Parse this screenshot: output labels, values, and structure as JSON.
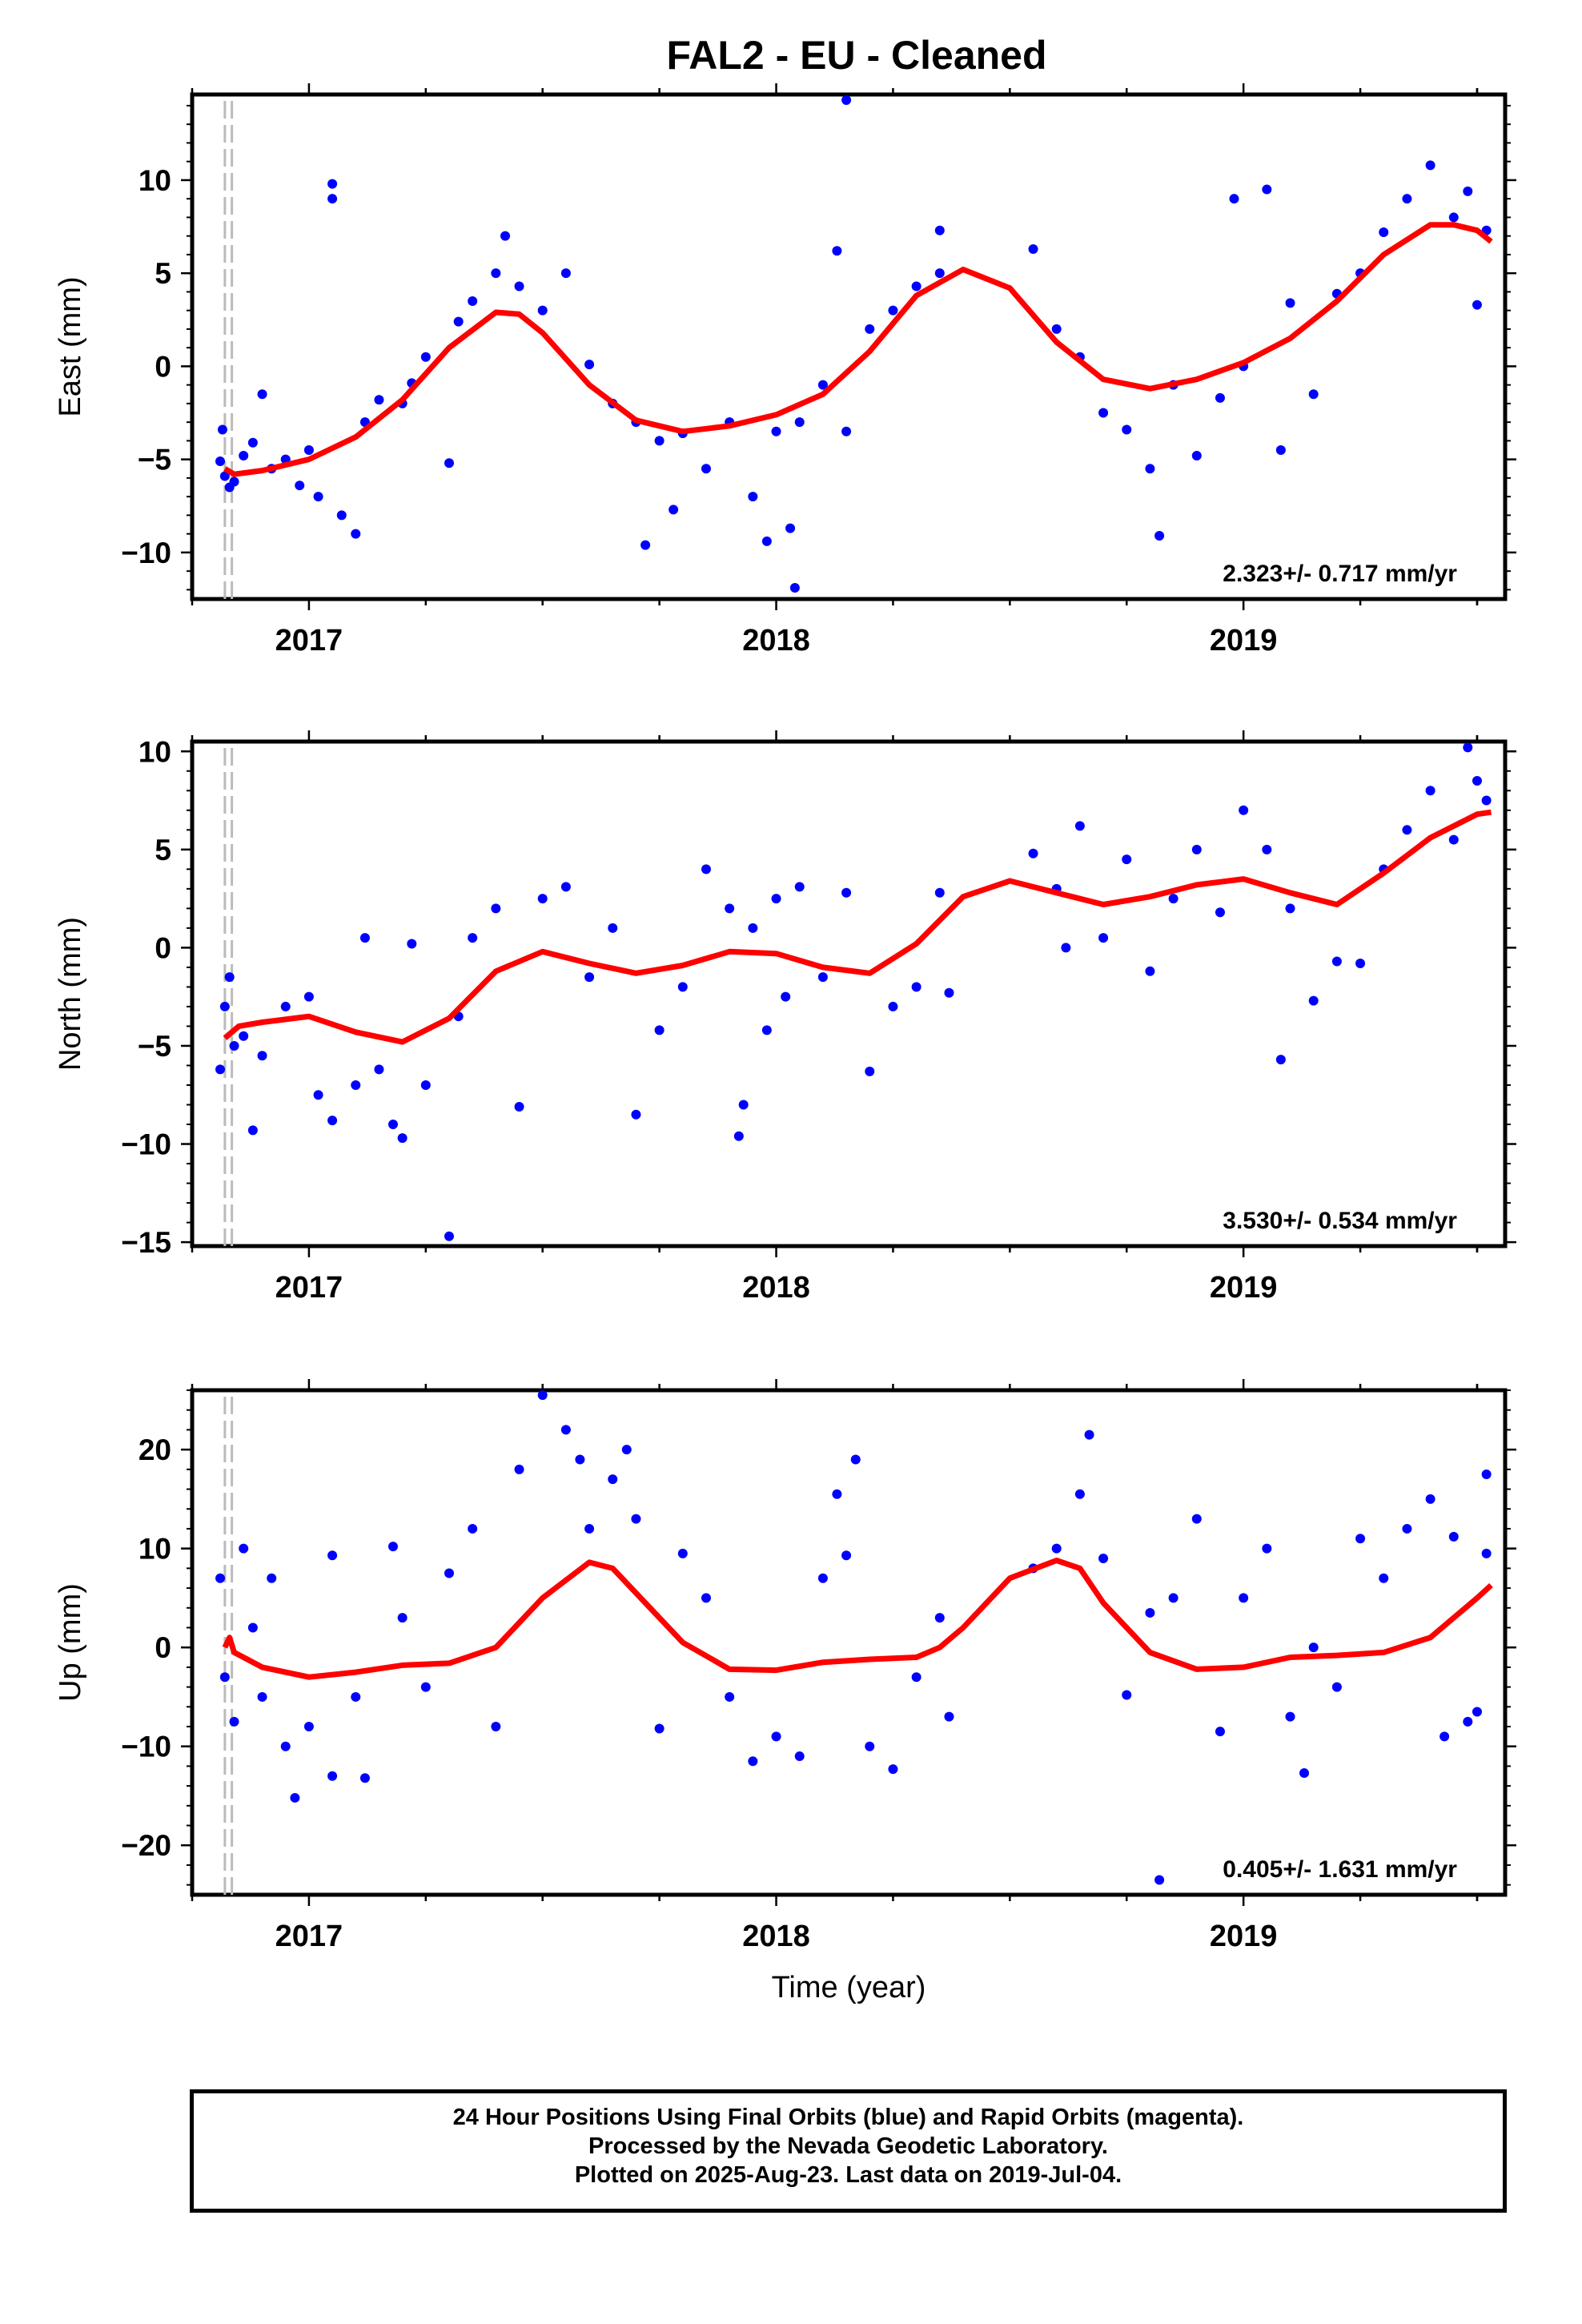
{
  "title": "FAL2  - EU - Cleaned",
  "footer": {
    "line1": "24 Hour Positions Using Final Orbits (blue) and Rapid Orbits (magenta).",
    "line2": "Processed by the Nevada Geodetic Laboratory.",
    "line3": "Plotted on 2025-Aug-23. Last data on 2019-Jul-04."
  },
  "colors": {
    "points": "#0000ff",
    "fit": "#ff0000",
    "marker": "#bbbbbb",
    "frame": "#000000"
  },
  "chart_data": [
    {
      "type": "scatter",
      "name": "East",
      "ylabel": "East (mm)",
      "xlabel": "",
      "xlim": [
        2016.75,
        2019.56
      ],
      "ylim": [
        -12.5,
        14.6
      ],
      "yticks": [
        -10,
        -5,
        0,
        5,
        10
      ],
      "xticks": [
        2017,
        2018,
        2019
      ],
      "rate_label": "2.323+/- 0.717 mm/yr",
      "marker_x": [
        2016.82,
        2016.835
      ],
      "grid": false,
      "fit_x": [
        2016.82,
        2016.84,
        2016.9,
        2017.0,
        2017.1,
        2017.2,
        2017.3,
        2017.4,
        2017.45,
        2017.5,
        2017.6,
        2017.7,
        2017.8,
        2017.9,
        2018.0,
        2018.1,
        2018.2,
        2018.3,
        2018.4,
        2018.5,
        2018.6,
        2018.7,
        2018.8,
        2018.9,
        2019.0,
        2019.1,
        2019.2,
        2019.3,
        2019.4,
        2019.45,
        2019.5,
        2019.53
      ],
      "fit_y": [
        -5.5,
        -5.8,
        -5.6,
        -5.0,
        -3.8,
        -1.8,
        1.0,
        2.9,
        2.8,
        1.8,
        -1.0,
        -2.9,
        -3.5,
        -3.2,
        -2.6,
        -1.5,
        0.8,
        3.8,
        5.2,
        4.2,
        1.3,
        -0.7,
        -1.2,
        -0.7,
        0.2,
        1.5,
        3.5,
        6.0,
        7.6,
        7.6,
        7.3,
        6.7
      ],
      "points": [
        [
          2016.81,
          -5.1
        ],
        [
          2016.815,
          -3.4
        ],
        [
          2016.82,
          -5.9
        ],
        [
          2016.83,
          -6.5
        ],
        [
          2016.84,
          -6.2
        ],
        [
          2016.86,
          -4.8
        ],
        [
          2016.88,
          -4.1
        ],
        [
          2016.9,
          -1.5
        ],
        [
          2016.92,
          -5.5
        ],
        [
          2016.95,
          -5.0
        ],
        [
          2016.98,
          -6.4
        ],
        [
          2017.0,
          -4.5
        ],
        [
          2017.02,
          -7.0
        ],
        [
          2017.05,
          9.8
        ],
        [
          2017.05,
          9.0
        ],
        [
          2017.07,
          -8.0
        ],
        [
          2017.1,
          -9.0
        ],
        [
          2017.12,
          -3.0
        ],
        [
          2017.15,
          -1.8
        ],
        [
          2017.2,
          -2.0
        ],
        [
          2017.22,
          -0.9
        ],
        [
          2017.25,
          0.5
        ],
        [
          2017.3,
          -5.2
        ],
        [
          2017.32,
          2.4
        ],
        [
          2017.35,
          3.5
        ],
        [
          2017.4,
          5.0
        ],
        [
          2017.42,
          7.0
        ],
        [
          2017.45,
          4.3
        ],
        [
          2017.5,
          3.0
        ],
        [
          2017.55,
          5.0
        ],
        [
          2017.6,
          0.1
        ],
        [
          2017.65,
          -2.0
        ],
        [
          2017.7,
          -3.0
        ],
        [
          2017.72,
          -9.6
        ],
        [
          2017.75,
          -4.0
        ],
        [
          2017.78,
          -7.7
        ],
        [
          2017.8,
          -3.6
        ],
        [
          2017.85,
          -5.5
        ],
        [
          2017.9,
          -3.0
        ],
        [
          2017.95,
          -7.0
        ],
        [
          2017.98,
          -9.4
        ],
        [
          2018.0,
          -3.5
        ],
        [
          2018.03,
          -8.7
        ],
        [
          2018.05,
          -3.0
        ],
        [
          2018.1,
          -1.0
        ],
        [
          2018.13,
          6.2
        ],
        [
          2018.15,
          -3.5
        ],
        [
          2018.2,
          2.0
        ],
        [
          2018.25,
          3.0
        ],
        [
          2018.3,
          4.3
        ],
        [
          2018.35,
          7.3
        ],
        [
          2018.35,
          5.0
        ],
        [
          2018.55,
          6.3
        ],
        [
          2018.6,
          2.0
        ],
        [
          2018.65,
          0.5
        ],
        [
          2018.7,
          -2.5
        ],
        [
          2018.75,
          -3.4
        ],
        [
          2018.8,
          -5.5
        ],
        [
          2018.82,
          -9.1
        ],
        [
          2018.85,
          -1.0
        ],
        [
          2018.9,
          -4.8
        ],
        [
          2018.95,
          -1.7
        ],
        [
          2018.98,
          9.0
        ],
        [
          2019.0,
          0.0
        ],
        [
          2019.05,
          9.5
        ],
        [
          2019.08,
          -4.5
        ],
        [
          2019.1,
          3.4
        ],
        [
          2019.15,
          -1.5
        ],
        [
          2019.2,
          3.9
        ],
        [
          2019.25,
          5.0
        ],
        [
          2019.3,
          7.2
        ],
        [
          2019.35,
          9.0
        ],
        [
          2019.4,
          10.8
        ],
        [
          2019.45,
          8.0
        ],
        [
          2019.48,
          9.4
        ],
        [
          2019.5,
          3.3
        ],
        [
          2019.52,
          7.3
        ],
        [
          2018.15,
          14.3
        ],
        [
          2018.04,
          -11.9
        ]
      ]
    },
    {
      "type": "scatter",
      "name": "North",
      "ylabel": "North (mm)",
      "xlabel": "",
      "xlim": [
        2016.75,
        2019.56
      ],
      "ylim": [
        -15.2,
        10.5
      ],
      "yticks": [
        -15,
        -10,
        -5,
        0,
        5,
        10
      ],
      "xticks": [
        2017,
        2018,
        2019
      ],
      "rate_label": "3.530+/- 0.534 mm/yr",
      "marker_x": [
        2016.82,
        2016.835
      ],
      "grid": false,
      "fit_x": [
        2016.82,
        2016.85,
        2016.9,
        2017.0,
        2017.1,
        2017.2,
        2017.3,
        2017.4,
        2017.5,
        2017.6,
        2017.7,
        2017.8,
        2017.9,
        2018.0,
        2018.1,
        2018.2,
        2018.3,
        2018.4,
        2018.5,
        2018.6,
        2018.7,
        2018.8,
        2018.9,
        2019.0,
        2019.1,
        2019.2,
        2019.3,
        2019.4,
        2019.5,
        2019.53
      ],
      "fit_y": [
        -4.6,
        -4.0,
        -3.8,
        -3.5,
        -4.3,
        -4.8,
        -3.6,
        -1.2,
        -0.2,
        -0.8,
        -1.3,
        -0.9,
        -0.2,
        -0.3,
        -1.0,
        -1.3,
        0.2,
        2.6,
        3.4,
        2.8,
        2.2,
        2.6,
        3.2,
        3.5,
        2.8,
        2.2,
        3.8,
        5.6,
        6.8,
        6.9
      ],
      "points": [
        [
          2016.81,
          -6.2
        ],
        [
          2016.82,
          -3.0
        ],
        [
          2016.83,
          -1.5
        ],
        [
          2016.84,
          -5.0
        ],
        [
          2016.86,
          -4.5
        ],
        [
          2016.88,
          -9.3
        ],
        [
          2016.9,
          -5.5
        ],
        [
          2016.95,
          -3.0
        ],
        [
          2017.0,
          -2.5
        ],
        [
          2017.02,
          -7.5
        ],
        [
          2017.05,
          -8.8
        ],
        [
          2017.1,
          -7.0
        ],
        [
          2017.12,
          0.5
        ],
        [
          2017.15,
          -6.2
        ],
        [
          2017.18,
          -9.0
        ],
        [
          2017.2,
          -9.7
        ],
        [
          2017.22,
          0.2
        ],
        [
          2017.25,
          -7.0
        ],
        [
          2017.3,
          -14.7
        ],
        [
          2017.32,
          -3.5
        ],
        [
          2017.35,
          0.5
        ],
        [
          2017.4,
          2.0
        ],
        [
          2017.45,
          -8.1
        ],
        [
          2017.5,
          2.5
        ],
        [
          2017.55,
          3.1
        ],
        [
          2017.6,
          -1.5
        ],
        [
          2017.65,
          1.0
        ],
        [
          2017.7,
          -8.5
        ],
        [
          2017.75,
          -4.2
        ],
        [
          2017.8,
          -2.0
        ],
        [
          2017.85,
          4.0
        ],
        [
          2017.9,
          2.0
        ],
        [
          2017.92,
          -9.6
        ],
        [
          2017.93,
          -8.0
        ],
        [
          2017.95,
          1.0
        ],
        [
          2017.98,
          -4.2
        ],
        [
          2018.0,
          2.5
        ],
        [
          2018.02,
          -2.5
        ],
        [
          2018.05,
          3.1
        ],
        [
          2018.1,
          -1.5
        ],
        [
          2018.15,
          2.8
        ],
        [
          2018.2,
          -6.3
        ],
        [
          2018.25,
          -3.0
        ],
        [
          2018.3,
          -2.0
        ],
        [
          2018.35,
          2.8
        ],
        [
          2018.37,
          -2.3
        ],
        [
          2018.55,
          4.8
        ],
        [
          2018.6,
          3.0
        ],
        [
          2018.62,
          0.0
        ],
        [
          2018.65,
          6.2
        ],
        [
          2018.7,
          0.5
        ],
        [
          2018.75,
          4.5
        ],
        [
          2018.8,
          -1.2
        ],
        [
          2018.85,
          2.5
        ],
        [
          2018.9,
          5.0
        ],
        [
          2018.95,
          1.8
        ],
        [
          2019.0,
          7.0
        ],
        [
          2019.05,
          5.0
        ],
        [
          2019.08,
          -5.7
        ],
        [
          2019.1,
          2.0
        ],
        [
          2019.15,
          -2.7
        ],
        [
          2019.2,
          -0.7
        ],
        [
          2019.25,
          -0.8
        ],
        [
          2019.3,
          4.0
        ],
        [
          2019.35,
          6.0
        ],
        [
          2019.4,
          8.0
        ],
        [
          2019.45,
          5.5
        ],
        [
          2019.48,
          10.2
        ],
        [
          2019.5,
          8.5
        ],
        [
          2019.52,
          7.5
        ]
      ]
    },
    {
      "type": "scatter",
      "name": "Up",
      "ylabel": "Up (mm)",
      "xlabel": "Time (year)",
      "xlim": [
        2016.75,
        2019.56
      ],
      "ylim": [
        -25,
        26
      ],
      "yticks": [
        -20,
        -10,
        0,
        10,
        20
      ],
      "xticks": [
        2017,
        2018,
        2019
      ],
      "rate_label": "0.405+/- 1.631 mm/yr",
      "marker_x": [
        2016.82,
        2016.835
      ],
      "grid": false,
      "fit_x": [
        2016.82,
        2016.83,
        2016.84,
        2016.86,
        2016.9,
        2017.0,
        2017.1,
        2017.2,
        2017.3,
        2017.4,
        2017.5,
        2017.6,
        2017.65,
        2017.7,
        2017.8,
        2017.9,
        2018.0,
        2018.1,
        2018.2,
        2018.3,
        2018.35,
        2018.4,
        2018.5,
        2018.6,
        2018.65,
        2018.7,
        2018.8,
        2018.9,
        2019.0,
        2019.1,
        2019.2,
        2019.3,
        2019.4,
        2019.5,
        2019.53
      ],
      "fit_y": [
        0.0,
        1.0,
        -0.5,
        -1.0,
        -2.0,
        -3.0,
        -2.5,
        -1.8,
        -1.6,
        0.0,
        5.0,
        8.6,
        8.0,
        5.5,
        0.5,
        -2.2,
        -2.3,
        -1.5,
        -1.2,
        -1.0,
        0.0,
        2.0,
        7.0,
        8.8,
        8.0,
        4.5,
        -0.5,
        -2.2,
        -2.0,
        -1.0,
        -0.8,
        -0.5,
        1.0,
        5.0,
        6.3
      ],
      "points": [
        [
          2016.81,
          7.0
        ],
        [
          2016.82,
          -3.0
        ],
        [
          2016.84,
          -7.5
        ],
        [
          2016.86,
          10.0
        ],
        [
          2016.88,
          2.0
        ],
        [
          2016.9,
          -5.0
        ],
        [
          2016.92,
          7.0
        ],
        [
          2016.95,
          -10.0
        ],
        [
          2016.97,
          -15.2
        ],
        [
          2017.0,
          -8.0
        ],
        [
          2017.05,
          9.3
        ],
        [
          2017.05,
          -13.0
        ],
        [
          2017.1,
          -5.0
        ],
        [
          2017.12,
          -13.2
        ],
        [
          2017.18,
          10.2
        ],
        [
          2017.2,
          3.0
        ],
        [
          2017.25,
          -4.0
        ],
        [
          2017.3,
          7.5
        ],
        [
          2017.35,
          12.0
        ],
        [
          2017.4,
          -8.0
        ],
        [
          2017.45,
          18.0
        ],
        [
          2017.5,
          25.5
        ],
        [
          2017.55,
          22.0
        ],
        [
          2017.58,
          19.0
        ],
        [
          2017.6,
          12.0
        ],
        [
          2017.65,
          17.0
        ],
        [
          2017.68,
          20.0
        ],
        [
          2017.7,
          13.0
        ],
        [
          2017.75,
          -8.2
        ],
        [
          2017.8,
          9.5
        ],
        [
          2017.85,
          5.0
        ],
        [
          2017.9,
          -5.0
        ],
        [
          2017.95,
          -11.5
        ],
        [
          2018.0,
          -9.0
        ],
        [
          2018.05,
          -11.0
        ],
        [
          2018.1,
          7.0
        ],
        [
          2018.13,
          15.5
        ],
        [
          2018.15,
          9.3
        ],
        [
          2018.17,
          19.0
        ],
        [
          2018.2,
          -10.0
        ],
        [
          2018.25,
          -12.3
        ],
        [
          2018.3,
          -3.0
        ],
        [
          2018.35,
          3.0
        ],
        [
          2018.37,
          -7.0
        ],
        [
          2018.55,
          8.0
        ],
        [
          2018.6,
          10.0
        ],
        [
          2018.65,
          15.5
        ],
        [
          2018.67,
          21.5
        ],
        [
          2018.7,
          9.0
        ],
        [
          2018.75,
          -4.8
        ],
        [
          2018.8,
          3.5
        ],
        [
          2018.82,
          -23.5
        ],
        [
          2018.85,
          5.0
        ],
        [
          2018.9,
          13.0
        ],
        [
          2018.95,
          -8.5
        ],
        [
          2019.0,
          5.0
        ],
        [
          2019.05,
          10.0
        ],
        [
          2019.1,
          -7.0
        ],
        [
          2019.13,
          -12.7
        ],
        [
          2019.15,
          0.0
        ],
        [
          2019.2,
          -4.0
        ],
        [
          2019.25,
          11.0
        ],
        [
          2019.3,
          7.0
        ],
        [
          2019.35,
          12.0
        ],
        [
          2019.4,
          15.0
        ],
        [
          2019.43,
          -9.0
        ],
        [
          2019.45,
          11.2
        ],
        [
          2019.48,
          -7.5
        ],
        [
          2019.5,
          -6.5
        ],
        [
          2019.52,
          17.5
        ],
        [
          2019.52,
          9.5
        ]
      ]
    }
  ]
}
